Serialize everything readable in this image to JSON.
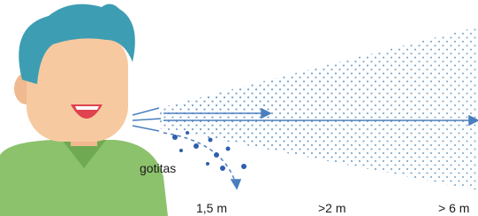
{
  "labels": {
    "droplets": "gotitas"
  },
  "distances": [
    "1,5 m",
    ">2 m",
    "> 6 m"
  ]
}
